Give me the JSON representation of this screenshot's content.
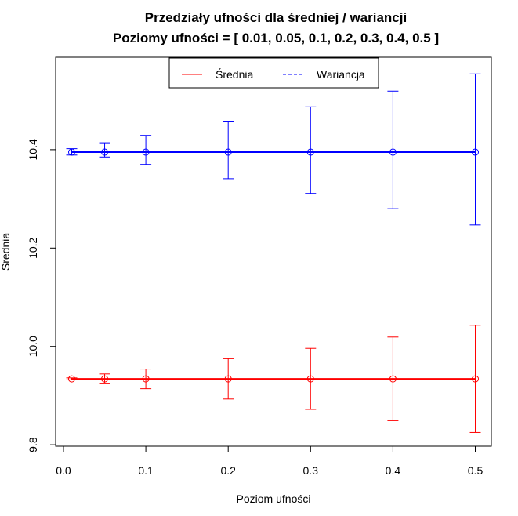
{
  "chart_data": {
    "type": "scatter",
    "title": "Przedziały ufności dla średniej / wariancji",
    "subtitle": "Poziomy ufności = [ 0.01, 0.05, 0.1, 0.2, 0.3, 0.4, 0.5 ]",
    "xlabel": "Poziom ufności",
    "ylabel": "Srednia",
    "xlim": [
      -0.0095,
      0.5195
    ],
    "ylim": [
      9.797,
      10.588
    ],
    "xticks": [
      0.0,
      0.1,
      0.2,
      0.3,
      0.4,
      0.5
    ],
    "xtick_labels": [
      "0.0",
      "0.1",
      "0.2",
      "0.3",
      "0.4",
      "0.5"
    ],
    "yticks": [
      9.8,
      10.0,
      10.2,
      10.4
    ],
    "ytick_labels": [
      "9.8",
      "10.0",
      "10.2",
      "10.4"
    ],
    "grid": false,
    "legend_position": "top-center",
    "x": [
      0.01,
      0.05,
      0.1,
      0.2,
      0.3,
      0.4,
      0.5
    ],
    "series": [
      {
        "name": "Średnia",
        "color": "#ff0000",
        "line_style": "solid",
        "center": [
          9.934,
          9.934,
          9.934,
          9.934,
          9.934,
          9.934,
          9.934
        ],
        "lower": [
          9.932,
          9.924,
          9.914,
          9.893,
          9.872,
          9.849,
          9.825
        ],
        "upper": [
          9.936,
          9.944,
          9.954,
          9.975,
          9.996,
          10.019,
          10.043
        ]
      },
      {
        "name": "Wariancja",
        "color": "#0000ff",
        "line_style": "dashed",
        "center": [
          10.395,
          10.395,
          10.395,
          10.395,
          10.395,
          10.395,
          10.395
        ],
        "lower": [
          10.389,
          10.385,
          10.37,
          10.341,
          10.311,
          10.28,
          10.247
        ],
        "upper": [
          10.402,
          10.414,
          10.429,
          10.458,
          10.487,
          10.519,
          10.554
        ]
      }
    ]
  }
}
